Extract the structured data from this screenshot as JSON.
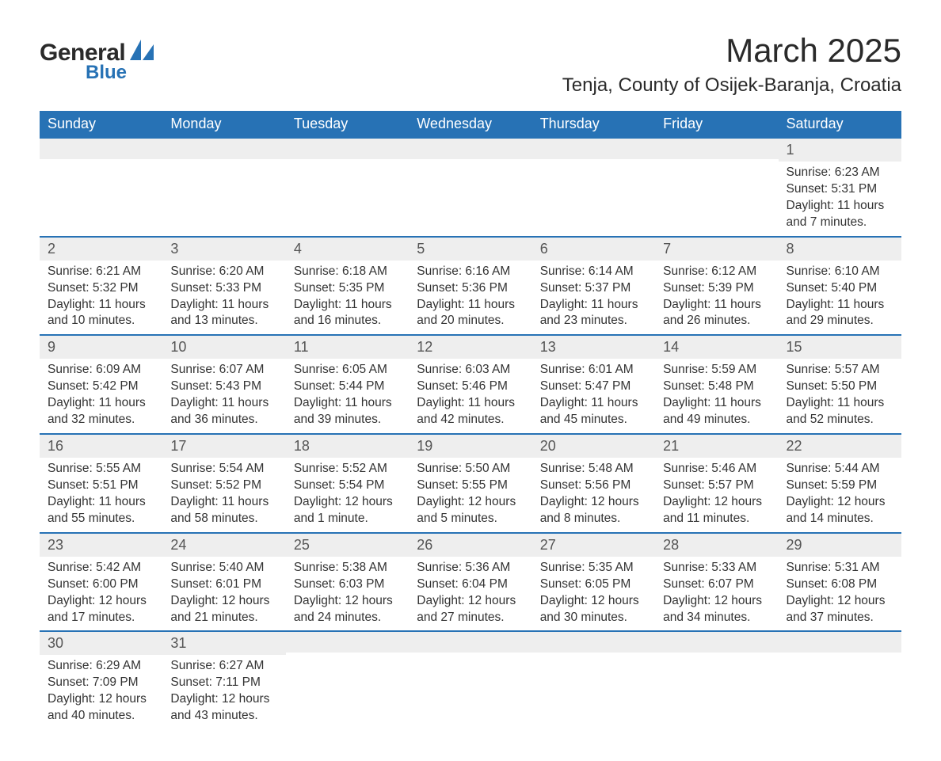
{
  "logo": {
    "text1": "General",
    "text2": "Blue",
    "shape_color": "#2772b5"
  },
  "title": "March 2025",
  "location": "Tenja, County of Osijek-Baranja, Croatia",
  "colors": {
    "header_bg": "#2772b5",
    "header_text": "#ffffff",
    "row_sep": "#2772b5",
    "daynum_bg": "#eeeeee",
    "text": "#333333"
  },
  "typography": {
    "title_fontsize": 42,
    "location_fontsize": 24,
    "header_fontsize": 18,
    "daynum_fontsize": 18,
    "body_fontsize": 15.5
  },
  "weekday_headers": [
    "Sunday",
    "Monday",
    "Tuesday",
    "Wednesday",
    "Thursday",
    "Friday",
    "Saturday"
  ],
  "weeks": [
    [
      null,
      null,
      null,
      null,
      null,
      null,
      {
        "n": "1",
        "sunrise": "Sunrise: 6:23 AM",
        "sunset": "Sunset: 5:31 PM",
        "daylight1": "Daylight: 11 hours",
        "daylight2": "and 7 minutes."
      }
    ],
    [
      {
        "n": "2",
        "sunrise": "Sunrise: 6:21 AM",
        "sunset": "Sunset: 5:32 PM",
        "daylight1": "Daylight: 11 hours",
        "daylight2": "and 10 minutes."
      },
      {
        "n": "3",
        "sunrise": "Sunrise: 6:20 AM",
        "sunset": "Sunset: 5:33 PM",
        "daylight1": "Daylight: 11 hours",
        "daylight2": "and 13 minutes."
      },
      {
        "n": "4",
        "sunrise": "Sunrise: 6:18 AM",
        "sunset": "Sunset: 5:35 PM",
        "daylight1": "Daylight: 11 hours",
        "daylight2": "and 16 minutes."
      },
      {
        "n": "5",
        "sunrise": "Sunrise: 6:16 AM",
        "sunset": "Sunset: 5:36 PM",
        "daylight1": "Daylight: 11 hours",
        "daylight2": "and 20 minutes."
      },
      {
        "n": "6",
        "sunrise": "Sunrise: 6:14 AM",
        "sunset": "Sunset: 5:37 PM",
        "daylight1": "Daylight: 11 hours",
        "daylight2": "and 23 minutes."
      },
      {
        "n": "7",
        "sunrise": "Sunrise: 6:12 AM",
        "sunset": "Sunset: 5:39 PM",
        "daylight1": "Daylight: 11 hours",
        "daylight2": "and 26 minutes."
      },
      {
        "n": "8",
        "sunrise": "Sunrise: 6:10 AM",
        "sunset": "Sunset: 5:40 PM",
        "daylight1": "Daylight: 11 hours",
        "daylight2": "and 29 minutes."
      }
    ],
    [
      {
        "n": "9",
        "sunrise": "Sunrise: 6:09 AM",
        "sunset": "Sunset: 5:42 PM",
        "daylight1": "Daylight: 11 hours",
        "daylight2": "and 32 minutes."
      },
      {
        "n": "10",
        "sunrise": "Sunrise: 6:07 AM",
        "sunset": "Sunset: 5:43 PM",
        "daylight1": "Daylight: 11 hours",
        "daylight2": "and 36 minutes."
      },
      {
        "n": "11",
        "sunrise": "Sunrise: 6:05 AM",
        "sunset": "Sunset: 5:44 PM",
        "daylight1": "Daylight: 11 hours",
        "daylight2": "and 39 minutes."
      },
      {
        "n": "12",
        "sunrise": "Sunrise: 6:03 AM",
        "sunset": "Sunset: 5:46 PM",
        "daylight1": "Daylight: 11 hours",
        "daylight2": "and 42 minutes."
      },
      {
        "n": "13",
        "sunrise": "Sunrise: 6:01 AM",
        "sunset": "Sunset: 5:47 PM",
        "daylight1": "Daylight: 11 hours",
        "daylight2": "and 45 minutes."
      },
      {
        "n": "14",
        "sunrise": "Sunrise: 5:59 AM",
        "sunset": "Sunset: 5:48 PM",
        "daylight1": "Daylight: 11 hours",
        "daylight2": "and 49 minutes."
      },
      {
        "n": "15",
        "sunrise": "Sunrise: 5:57 AM",
        "sunset": "Sunset: 5:50 PM",
        "daylight1": "Daylight: 11 hours",
        "daylight2": "and 52 minutes."
      }
    ],
    [
      {
        "n": "16",
        "sunrise": "Sunrise: 5:55 AM",
        "sunset": "Sunset: 5:51 PM",
        "daylight1": "Daylight: 11 hours",
        "daylight2": "and 55 minutes."
      },
      {
        "n": "17",
        "sunrise": "Sunrise: 5:54 AM",
        "sunset": "Sunset: 5:52 PM",
        "daylight1": "Daylight: 11 hours",
        "daylight2": "and 58 minutes."
      },
      {
        "n": "18",
        "sunrise": "Sunrise: 5:52 AM",
        "sunset": "Sunset: 5:54 PM",
        "daylight1": "Daylight: 12 hours",
        "daylight2": "and 1 minute."
      },
      {
        "n": "19",
        "sunrise": "Sunrise: 5:50 AM",
        "sunset": "Sunset: 5:55 PM",
        "daylight1": "Daylight: 12 hours",
        "daylight2": "and 5 minutes."
      },
      {
        "n": "20",
        "sunrise": "Sunrise: 5:48 AM",
        "sunset": "Sunset: 5:56 PM",
        "daylight1": "Daylight: 12 hours",
        "daylight2": "and 8 minutes."
      },
      {
        "n": "21",
        "sunrise": "Sunrise: 5:46 AM",
        "sunset": "Sunset: 5:57 PM",
        "daylight1": "Daylight: 12 hours",
        "daylight2": "and 11 minutes."
      },
      {
        "n": "22",
        "sunrise": "Sunrise: 5:44 AM",
        "sunset": "Sunset: 5:59 PM",
        "daylight1": "Daylight: 12 hours",
        "daylight2": "and 14 minutes."
      }
    ],
    [
      {
        "n": "23",
        "sunrise": "Sunrise: 5:42 AM",
        "sunset": "Sunset: 6:00 PM",
        "daylight1": "Daylight: 12 hours",
        "daylight2": "and 17 minutes."
      },
      {
        "n": "24",
        "sunrise": "Sunrise: 5:40 AM",
        "sunset": "Sunset: 6:01 PM",
        "daylight1": "Daylight: 12 hours",
        "daylight2": "and 21 minutes."
      },
      {
        "n": "25",
        "sunrise": "Sunrise: 5:38 AM",
        "sunset": "Sunset: 6:03 PM",
        "daylight1": "Daylight: 12 hours",
        "daylight2": "and 24 minutes."
      },
      {
        "n": "26",
        "sunrise": "Sunrise: 5:36 AM",
        "sunset": "Sunset: 6:04 PM",
        "daylight1": "Daylight: 12 hours",
        "daylight2": "and 27 minutes."
      },
      {
        "n": "27",
        "sunrise": "Sunrise: 5:35 AM",
        "sunset": "Sunset: 6:05 PM",
        "daylight1": "Daylight: 12 hours",
        "daylight2": "and 30 minutes."
      },
      {
        "n": "28",
        "sunrise": "Sunrise: 5:33 AM",
        "sunset": "Sunset: 6:07 PM",
        "daylight1": "Daylight: 12 hours",
        "daylight2": "and 34 minutes."
      },
      {
        "n": "29",
        "sunrise": "Sunrise: 5:31 AM",
        "sunset": "Sunset: 6:08 PM",
        "daylight1": "Daylight: 12 hours",
        "daylight2": "and 37 minutes."
      }
    ],
    [
      {
        "n": "30",
        "sunrise": "Sunrise: 6:29 AM",
        "sunset": "Sunset: 7:09 PM",
        "daylight1": "Daylight: 12 hours",
        "daylight2": "and 40 minutes."
      },
      {
        "n": "31",
        "sunrise": "Sunrise: 6:27 AM",
        "sunset": "Sunset: 7:11 PM",
        "daylight1": "Daylight: 12 hours",
        "daylight2": "and 43 minutes."
      },
      null,
      null,
      null,
      null,
      null
    ]
  ]
}
